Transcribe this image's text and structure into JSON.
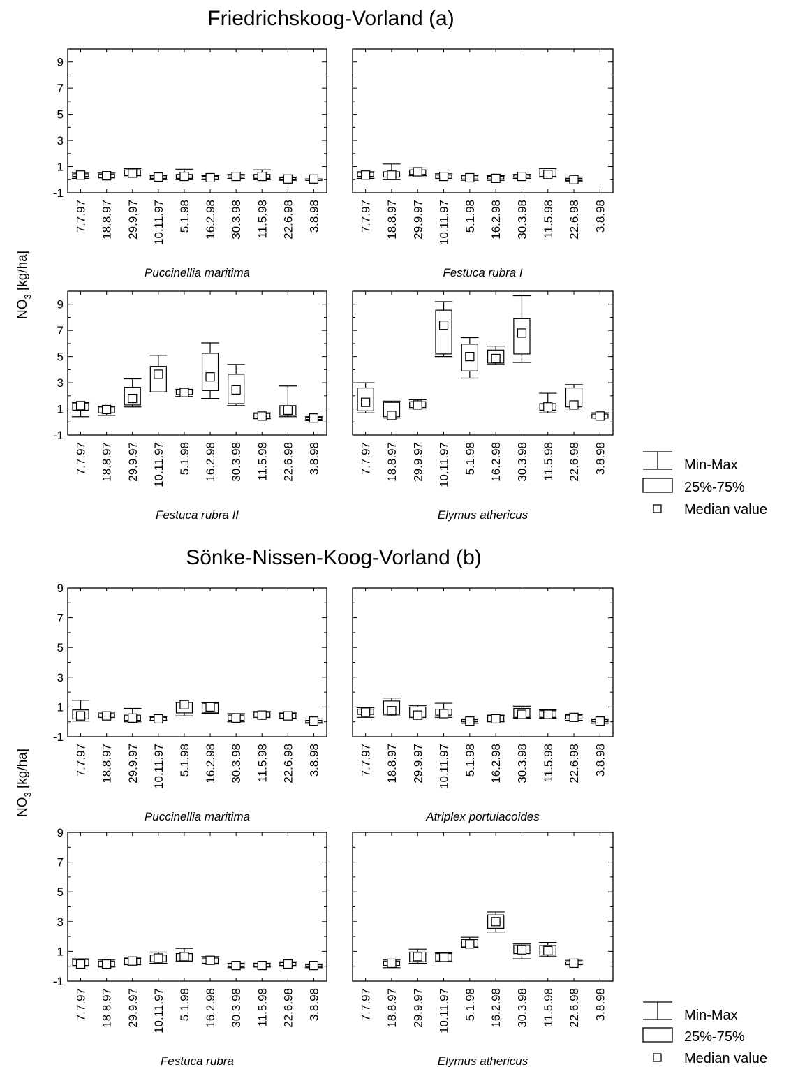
{
  "figure": {
    "title_a": "Friedrichskoog-Vorland (a)",
    "title_b": "Sönke-Nissen-Koog-Vorland (b)",
    "ylabel_main": "NO",
    "ylabel_sub": "3",
    "ylabel_unit": "[kg/ha]",
    "legend": {
      "minmax": "Min-Max",
      "box": "25%-75%",
      "median": "Median value"
    }
  },
  "chart_data": [
    {
      "type": "boxplot",
      "site": "Friedrichskoog-Vorland (a)",
      "species": "Puccinellia maritima",
      "ylim": [
        -1,
        10
      ],
      "yticks": [
        -1,
        1,
        3,
        5,
        7,
        9
      ],
      "categories": [
        "7.7.97",
        "18.8.97",
        "29.9.97",
        "10.11.97",
        "5.1.98",
        "16.2.98",
        "30.3.98",
        "11.5.98",
        "22.6.98",
        "3.8.98"
      ],
      "boxes": [
        {
          "min": 0.1,
          "q1": 0.25,
          "median": 0.35,
          "q3": 0.45,
          "max": 0.55
        },
        {
          "min": 0.05,
          "q1": 0.15,
          "median": 0.3,
          "q3": 0.4,
          "max": 0.5
        },
        {
          "min": 0.3,
          "q1": 0.35,
          "median": 0.5,
          "q3": 0.75,
          "max": 0.85
        },
        {
          "min": 0.0,
          "q1": 0.1,
          "median": 0.2,
          "q3": 0.3,
          "max": 0.35
        },
        {
          "min": 0.0,
          "q1": 0.1,
          "median": 0.25,
          "q3": 0.4,
          "max": 0.8
        },
        {
          "min": 0.0,
          "q1": 0.05,
          "median": 0.15,
          "q3": 0.25,
          "max": 0.3
        },
        {
          "min": 0.1,
          "q1": 0.2,
          "median": 0.25,
          "q3": 0.35,
          "max": 0.4
        },
        {
          "min": 0.0,
          "q1": 0.1,
          "median": 0.25,
          "q3": 0.4,
          "max": 0.75
        },
        {
          "min": -0.05,
          "q1": 0.0,
          "median": 0.05,
          "q3": 0.15,
          "max": 0.2
        },
        {
          "min": 0.05,
          "q1": 0.05,
          "median": 0.05,
          "q3": 0.05,
          "max": 0.05
        }
      ]
    },
    {
      "type": "boxplot",
      "site": "Friedrichskoog-Vorland (a)",
      "species": "Festuca rubra I",
      "ylim": [
        -1,
        10
      ],
      "yticks": [
        -1,
        1,
        3,
        5,
        7,
        9
      ],
      "categories": [
        "7.7.97",
        "18.8.97",
        "29.9.97",
        "10.11.97",
        "5.1.98",
        "16.2.98",
        "30.3.98",
        "11.5.98",
        "22.6.98",
        "3.8.98"
      ],
      "boxes": [
        {
          "min": 0.1,
          "q1": 0.25,
          "median": 0.35,
          "q3": 0.55,
          "max": 0.6
        },
        {
          "min": 0.0,
          "q1": 0.2,
          "median": 0.35,
          "q3": 0.6,
          "max": 1.2
        },
        {
          "min": 0.3,
          "q1": 0.4,
          "median": 0.6,
          "q3": 0.75,
          "max": 0.9
        },
        {
          "min": 0.05,
          "q1": 0.1,
          "median": 0.25,
          "q3": 0.35,
          "max": 0.45
        },
        {
          "min": -0.05,
          "q1": 0.05,
          "median": 0.15,
          "q3": 0.3,
          "max": 0.35
        },
        {
          "min": -0.05,
          "q1": 0.05,
          "median": 0.1,
          "q3": 0.25,
          "max": 0.3
        },
        {
          "min": 0.1,
          "q1": 0.2,
          "median": 0.25,
          "q3": 0.35,
          "max": 0.4
        },
        {
          "min": 0.2,
          "q1": 0.25,
          "median": 0.4,
          "q3": 0.85,
          "max": 0.85
        },
        {
          "min": -0.1,
          "q1": -0.05,
          "median": 0.0,
          "q3": 0.1,
          "max": 0.2
        },
        null
      ]
    },
    {
      "type": "boxplot",
      "site": "Friedrichskoog-Vorland (a)",
      "species": "Festuca rubra II",
      "ylim": [
        -1,
        10
      ],
      "yticks": [
        -1,
        1,
        3,
        5,
        7,
        9
      ],
      "categories": [
        "7.7.97",
        "18.8.97",
        "29.9.97",
        "10.11.97",
        "5.1.98",
        "16.2.98",
        "30.3.98",
        "11.5.98",
        "22.6.98",
        "3.8.98"
      ],
      "boxes": [
        {
          "min": 0.4,
          "q1": 0.9,
          "median": 1.25,
          "q3": 1.45,
          "max": 1.5
        },
        {
          "min": 0.5,
          "q1": 0.7,
          "median": 0.95,
          "q3": 1.15,
          "max": 1.2
        },
        {
          "min": 1.15,
          "q1": 1.3,
          "median": 1.8,
          "q3": 2.65,
          "max": 3.3
        },
        {
          "min": 2.3,
          "q1": 2.3,
          "median": 3.65,
          "q3": 4.25,
          "max": 5.1
        },
        {
          "min": 1.95,
          "q1": 2.1,
          "median": 2.25,
          "q3": 2.45,
          "max": 2.5
        },
        {
          "min": 1.8,
          "q1": 2.4,
          "median": 3.45,
          "q3": 5.25,
          "max": 6.05
        },
        {
          "min": 1.25,
          "q1": 1.4,
          "median": 2.45,
          "q3": 3.65,
          "max": 4.4
        },
        {
          "min": 0.25,
          "q1": 0.3,
          "median": 0.45,
          "q3": 0.65,
          "max": 0.7
        },
        {
          "min": 0.4,
          "q1": 0.5,
          "median": 0.9,
          "q3": 1.25,
          "max": 2.75
        },
        {
          "min": 0.1,
          "q1": 0.2,
          "median": 0.3,
          "q3": 0.35,
          "max": 0.4
        }
      ]
    },
    {
      "type": "boxplot",
      "site": "Friedrichskoog-Vorland (a)",
      "species": "Elymus athericus",
      "ylim": [
        -1,
        10
      ],
      "yticks": [
        -1,
        1,
        3,
        5,
        7,
        9
      ],
      "categories": [
        "7.7.97",
        "18.8.97",
        "29.9.97",
        "10.11.97",
        "5.1.98",
        "16.2.98",
        "30.3.98",
        "11.5.98",
        "22.6.98",
        "3.8.98"
      ],
      "boxes": [
        {
          "min": 0.7,
          "q1": 0.85,
          "median": 1.5,
          "q3": 2.6,
          "max": 3.0
        },
        {
          "min": 0.3,
          "q1": 0.4,
          "median": 0.5,
          "q3": 1.5,
          "max": 1.6
        },
        {
          "min": 1.0,
          "q1": 1.1,
          "median": 1.3,
          "q3": 1.55,
          "max": 1.7
        },
        {
          "min": 5.0,
          "q1": 5.2,
          "median": 7.4,
          "q3": 8.55,
          "max": 9.2
        },
        {
          "min": 3.35,
          "q1": 3.9,
          "median": 5.0,
          "q3": 5.95,
          "max": 6.45
        },
        {
          "min": 4.4,
          "q1": 4.5,
          "median": 4.85,
          "q3": 5.5,
          "max": 5.8
        },
        {
          "min": 4.55,
          "q1": 5.2,
          "median": 6.8,
          "q3": 7.9,
          "max": 9.65
        },
        {
          "min": 0.7,
          "q1": 0.9,
          "median": 1.15,
          "q3": 1.4,
          "max": 2.2
        },
        {
          "min": 1.0,
          "q1": 1.15,
          "median": 1.3,
          "q3": 2.6,
          "max": 2.85
        },
        {
          "min": 0.3,
          "q1": 0.3,
          "median": 0.45,
          "q3": 0.6,
          "max": 0.7
        }
      ]
    },
    {
      "type": "boxplot",
      "site": "Sönke-Nissen-Koog-Vorland (b)",
      "species": "Puccinellia maritima",
      "ylim": [
        -1,
        9
      ],
      "yticks": [
        -1,
        1,
        3,
        5,
        7,
        9
      ],
      "categories": [
        "7.7.97",
        "18.8.97",
        "29.9.97",
        "10.11.97",
        "5.1.98",
        "16.2.98",
        "30.3.98",
        "11.5.98",
        "22.6.98",
        "3.8.98"
      ],
      "boxes": [
        {
          "min": 0.05,
          "q1": 0.2,
          "median": 0.4,
          "q3": 0.8,
          "max": 1.45
        },
        {
          "min": 0.2,
          "q1": 0.3,
          "median": 0.4,
          "q3": 0.55,
          "max": 0.65
        },
        {
          "min": 0.0,
          "q1": 0.1,
          "median": 0.25,
          "q3": 0.45,
          "max": 0.9
        },
        {
          "min": 0.1,
          "q1": 0.1,
          "median": 0.2,
          "q3": 0.3,
          "max": 0.35
        },
        {
          "min": 0.4,
          "q1": 0.6,
          "median": 1.15,
          "q3": 1.3,
          "max": 1.3
        },
        {
          "min": 0.55,
          "q1": 0.6,
          "median": 1.0,
          "q3": 1.25,
          "max": 1.3
        },
        {
          "min": 0.0,
          "q1": 0.1,
          "median": 0.25,
          "q3": 0.45,
          "max": 0.55
        },
        {
          "min": 0.2,
          "q1": 0.3,
          "median": 0.45,
          "q3": 0.65,
          "max": 0.7
        },
        {
          "min": 0.2,
          "q1": 0.25,
          "median": 0.4,
          "q3": 0.55,
          "max": 0.6
        },
        {
          "min": -0.1,
          "q1": -0.05,
          "median": 0.05,
          "q3": 0.1,
          "max": 0.2
        }
      ]
    },
    {
      "type": "boxplot",
      "site": "Sönke-Nissen-Koog-Vorland (b)",
      "species": "Atriplex portulacoides",
      "ylim": [
        -1,
        9
      ],
      "yticks": [
        -1,
        1,
        3,
        5,
        7,
        9
      ],
      "categories": [
        "7.7.97",
        "18.8.97",
        "29.9.97",
        "10.11.97",
        "5.1.98",
        "16.2.98",
        "30.3.98",
        "11.5.98",
        "22.6.98",
        "3.8.98"
      ],
      "boxes": [
        {
          "min": 0.3,
          "q1": 0.5,
          "median": 0.65,
          "q3": 0.85,
          "max": 0.95
        },
        {
          "min": 0.4,
          "q1": 0.5,
          "median": 0.75,
          "q3": 1.4,
          "max": 1.6
        },
        {
          "min": 0.2,
          "q1": 0.3,
          "median": 0.45,
          "q3": 1.0,
          "max": 1.1
        },
        {
          "min": 0.3,
          "q1": 0.45,
          "median": 0.55,
          "q3": 0.85,
          "max": 1.25
        },
        {
          "min": -0.1,
          "q1": 0.0,
          "median": 0.05,
          "q3": 0.15,
          "max": 0.2
        },
        {
          "min": 0.0,
          "q1": 0.05,
          "median": 0.2,
          "q3": 0.4,
          "max": 0.45
        },
        {
          "min": 0.25,
          "q1": 0.3,
          "median": 0.5,
          "q3": 0.9,
          "max": 1.05
        },
        {
          "min": 0.25,
          "q1": 0.3,
          "median": 0.5,
          "q3": 0.75,
          "max": 0.8
        },
        {
          "min": 0.1,
          "q1": 0.2,
          "median": 0.3,
          "q3": 0.45,
          "max": 0.5
        },
        {
          "min": -0.1,
          "q1": 0.0,
          "median": 0.05,
          "q3": 0.15,
          "max": 0.2
        }
      ]
    },
    {
      "type": "boxplot",
      "site": "Sönke-Nissen-Koog-Vorland (b)",
      "species": "Festuca rubra",
      "ylim": [
        -1,
        9
      ],
      "yticks": [
        -1,
        1,
        3,
        5,
        7,
        9
      ],
      "categories": [
        "7.7.97",
        "18.8.97",
        "29.9.97",
        "10.11.97",
        "5.1.98",
        "16.2.98",
        "30.3.98",
        "11.5.98",
        "22.6.98",
        "3.8.98"
      ],
      "boxes": [
        {
          "min": 0.0,
          "q1": 0.05,
          "median": 0.15,
          "q3": 0.45,
          "max": 0.5
        },
        {
          "min": -0.05,
          "q1": 0.0,
          "median": 0.15,
          "q3": 0.35,
          "max": 0.45
        },
        {
          "min": 0.1,
          "q1": 0.15,
          "median": 0.35,
          "q3": 0.5,
          "max": 0.55
        },
        {
          "min": 0.2,
          "q1": 0.3,
          "median": 0.55,
          "q3": 0.75,
          "max": 0.95
        },
        {
          "min": 0.3,
          "q1": 0.35,
          "median": 0.65,
          "q3": 0.85,
          "max": 1.2
        },
        {
          "min": 0.15,
          "q1": 0.2,
          "median": 0.4,
          "q3": 0.55,
          "max": 0.65
        },
        {
          "min": -0.1,
          "q1": -0.05,
          "median": 0.05,
          "q3": 0.15,
          "max": 0.2
        },
        {
          "min": -0.05,
          "q1": -0.05,
          "median": 0.05,
          "q3": 0.15,
          "max": 0.2
        },
        {
          "min": 0.0,
          "q1": 0.05,
          "median": 0.15,
          "q3": 0.25,
          "max": 0.3
        },
        {
          "min": -0.1,
          "q1": -0.05,
          "median": 0.05,
          "q3": 0.1,
          "max": 0.15
        }
      ]
    },
    {
      "type": "boxplot",
      "site": "Sönke-Nissen-Koog-Vorland (b)",
      "species": "Elymus athericus",
      "ylim": [
        -1,
        9
      ],
      "yticks": [
        -1,
        1,
        3,
        5,
        7,
        9
      ],
      "categories": [
        "7.7.97",
        "18.8.97",
        "29.9.97",
        "10.11.97",
        "5.1.98",
        "16.2.98",
        "30.3.98",
        "11.5.98",
        "22.6.98",
        "3.8.98"
      ],
      "boxes": [
        null,
        {
          "min": -0.1,
          "q1": 0.05,
          "median": 0.2,
          "q3": 0.35,
          "max": 0.45
        },
        {
          "min": 0.2,
          "q1": 0.3,
          "median": 0.65,
          "q3": 0.95,
          "max": 1.15
        },
        {
          "min": 0.3,
          "q1": 0.35,
          "median": 0.6,
          "q3": 0.85,
          "max": 0.9
        },
        {
          "min": 1.25,
          "q1": 1.3,
          "median": 1.5,
          "q3": 1.8,
          "max": 1.95
        },
        {
          "min": 2.3,
          "q1": 2.55,
          "median": 3.0,
          "q3": 3.45,
          "max": 3.65
        },
        {
          "min": 0.5,
          "q1": 0.85,
          "median": 1.1,
          "q3": 1.4,
          "max": 1.5
        },
        {
          "min": 0.65,
          "q1": 0.75,
          "median": 1.05,
          "q3": 1.4,
          "max": 1.6
        },
        {
          "min": 0.1,
          "q1": 0.15,
          "median": 0.2,
          "q3": 0.3,
          "max": 0.4
        },
        null
      ]
    }
  ]
}
